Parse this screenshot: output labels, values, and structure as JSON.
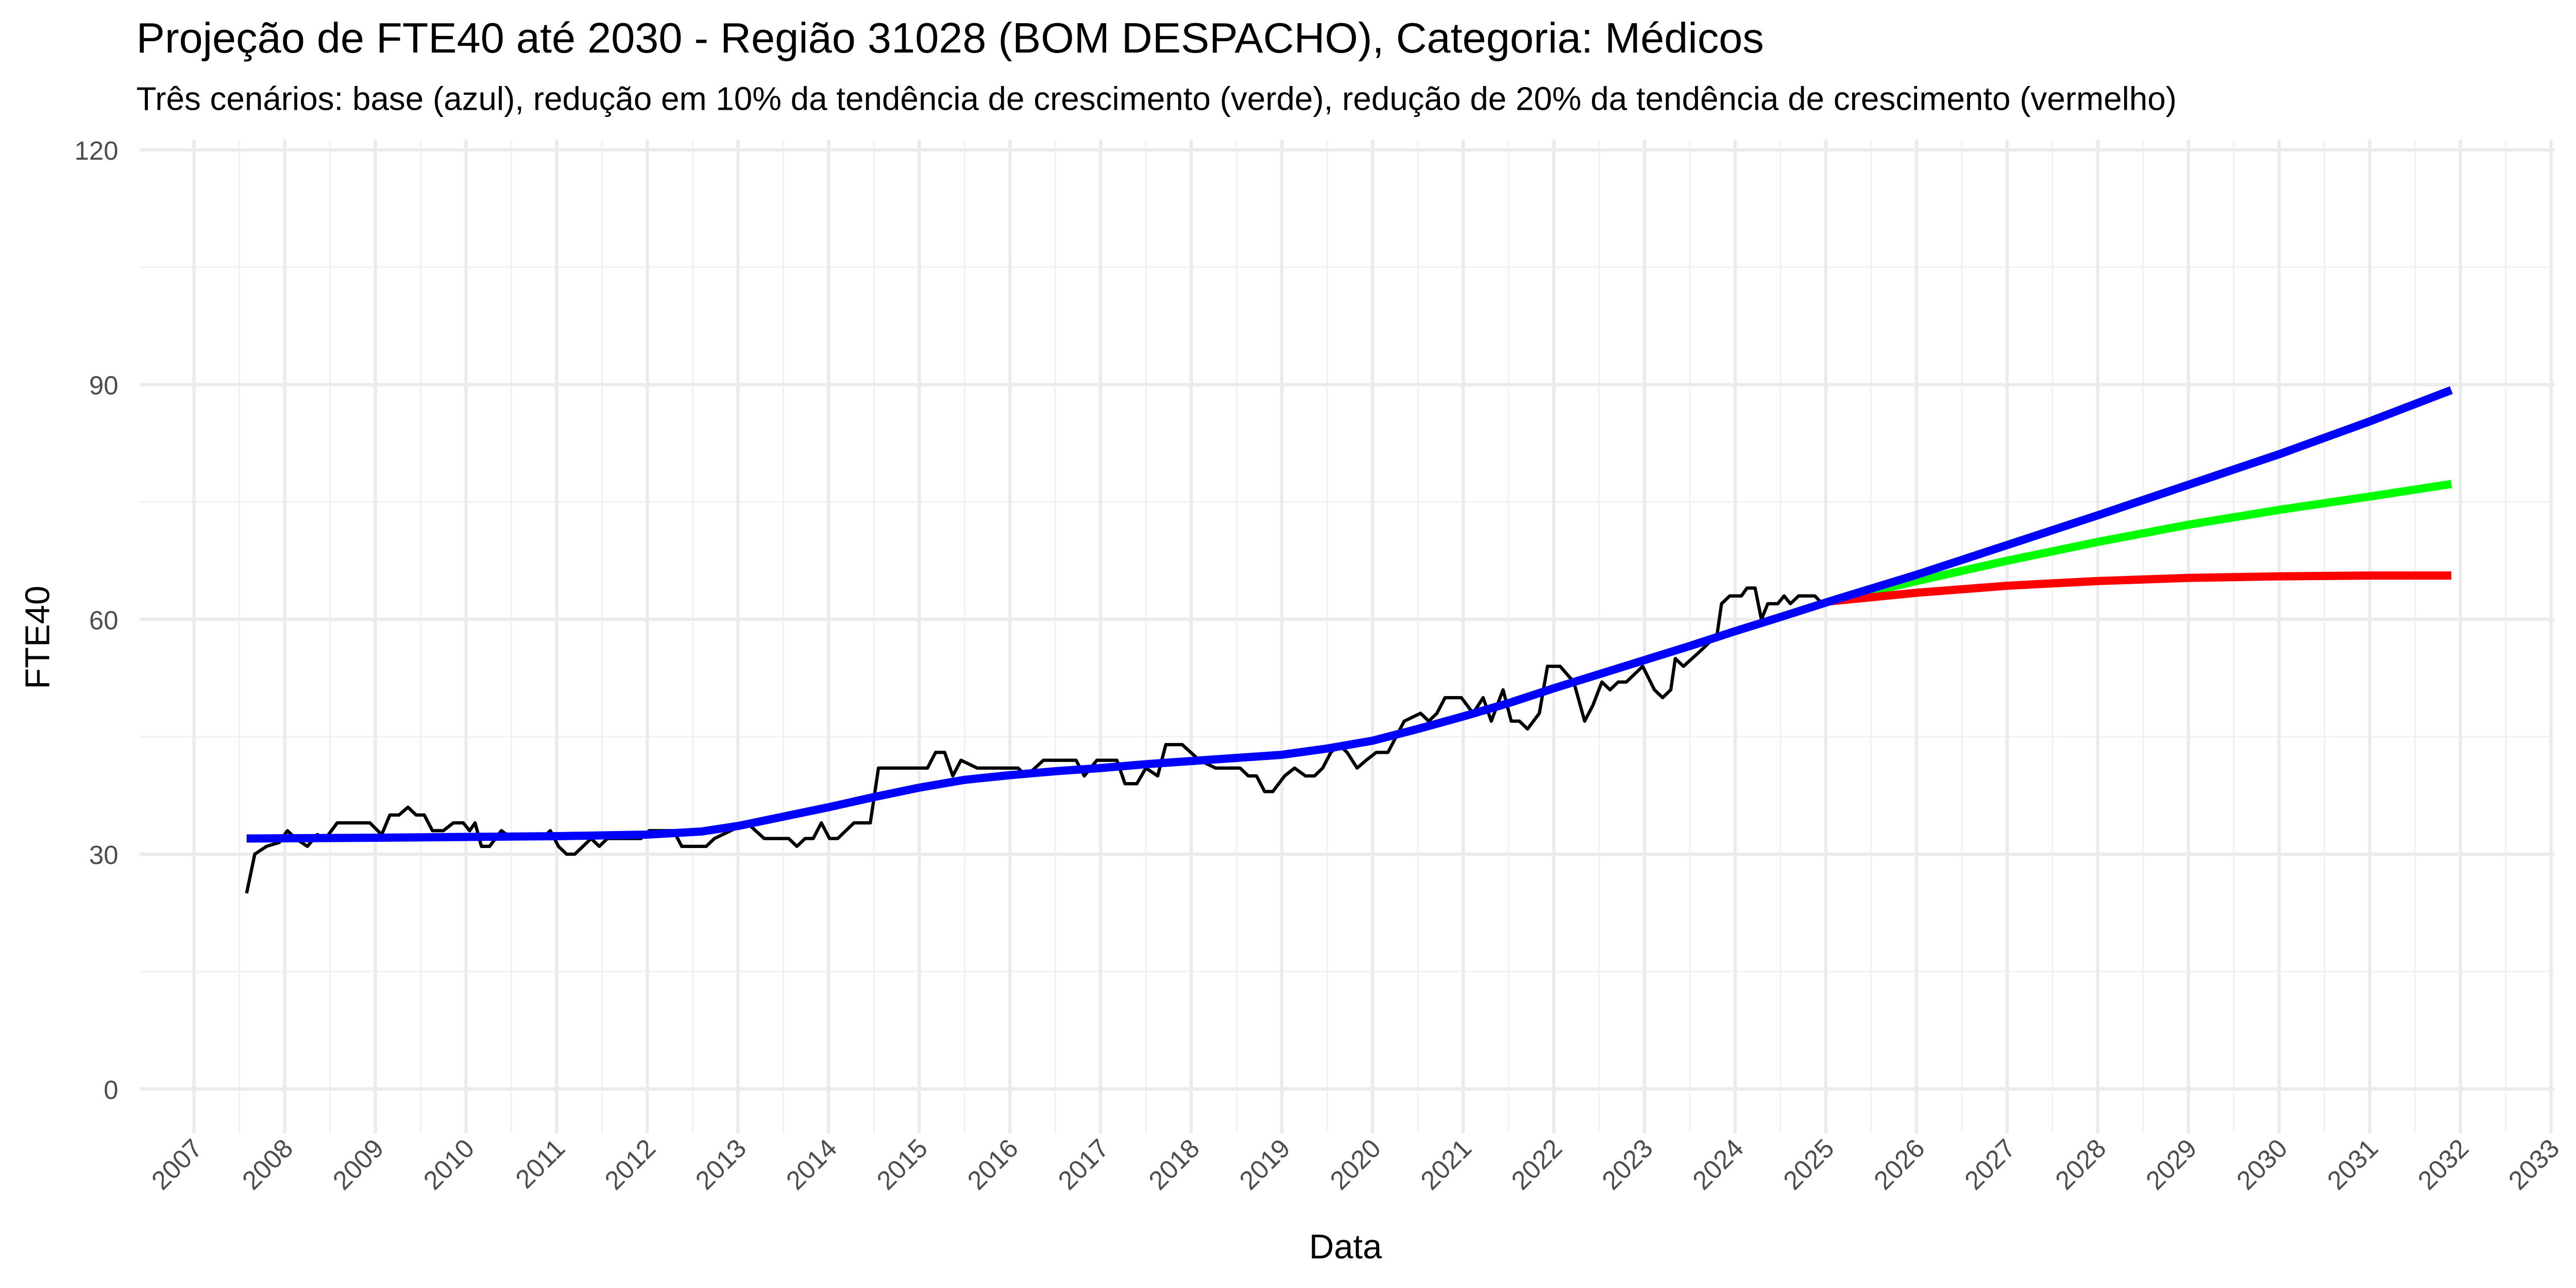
{
  "chart_data": {
    "type": "line",
    "title": "Projeção de FTE40 até 2030 - Região 31028 (BOM DESPACHO), Categoria: Médicos",
    "subtitle": "Três cenários: base (azul), redução em 10% da tendência de crescimento (verde), redução de 20% da tendência de crescimento (vermelho)",
    "x_label": "Data",
    "y_label": "FTE40",
    "xlim": [
      2006.4,
      2033.04
    ],
    "ylim": [
      -5.7,
      121.3
    ],
    "xticks": [
      2007,
      2008,
      2009,
      2010,
      2011,
      2012,
      2013,
      2014,
      2015,
      2016,
      2017,
      2018,
      2019,
      2020,
      2021,
      2022,
      2023,
      2024,
      2025,
      2026,
      2027,
      2028,
      2029,
      2030,
      2031,
      2032,
      2033
    ],
    "yticks": [
      0,
      30,
      60,
      90,
      120
    ],
    "grid": true,
    "minor_grid": true,
    "series": [
      {
        "color": "#000000",
        "width": 2,
        "x": [
          2007.58,
          2007.67,
          2007.8,
          2007.94,
          2008.03,
          2008.12,
          2008.25,
          2008.36,
          2008.45,
          2008.58,
          2008.94,
          2009.07,
          2009.16,
          2009.26,
          2009.36,
          2009.45,
          2009.54,
          2009.63,
          2009.75,
          2009.86,
          2009.97,
          2010.04,
          2010.1,
          2010.17,
          2010.26,
          2010.39,
          2010.51,
          2010.66,
          2010.84,
          2010.93,
          2011.02,
          2011.11,
          2011.2,
          2011.29,
          2011.38,
          2011.47,
          2011.56,
          2011.75,
          2011.93,
          2012.02,
          2012.29,
          2012.38,
          2012.65,
          2012.74,
          2012.92,
          2013.1,
          2013.29,
          2013.56,
          2013.65,
          2013.74,
          2013.83,
          2013.92,
          2014.01,
          2014.1,
          2014.19,
          2014.28,
          2014.46,
          2014.55,
          2015.09,
          2015.18,
          2015.28,
          2015.37,
          2015.46,
          2015.64,
          2016.09,
          2016.18,
          2016.37,
          2016.73,
          2016.82,
          2016.96,
          2017.18,
          2017.27,
          2017.4,
          2017.5,
          2017.63,
          2017.72,
          2017.9,
          2018.09,
          2018.27,
          2018.54,
          2018.63,
          2018.72,
          2018.81,
          2018.9,
          2019.03,
          2019.14,
          2019.26,
          2019.36,
          2019.45,
          2019.54,
          2019.63,
          2019.72,
          2019.83,
          2019.93,
          2020.04,
          2020.17,
          2020.26,
          2020.35,
          2020.53,
          2020.62,
          2020.71,
          2020.8,
          2020.98,
          2021.11,
          2021.22,
          2021.31,
          2021.44,
          2021.53,
          2021.62,
          2021.71,
          2021.84,
          2021.93,
          2022.07,
          2022.22,
          2022.34,
          2022.43,
          2022.53,
          2022.62,
          2022.71,
          2022.8,
          2022.89,
          2022.98,
          2023.11,
          2023.2,
          2023.29,
          2023.34,
          2023.43,
          2023.62,
          2023.8,
          2023.85,
          2023.94,
          2024.07,
          2024.13,
          2024.22,
          2024.29,
          2024.36,
          2024.47,
          2024.54,
          2024.61,
          2024.7,
          2024.88,
          2024.96
        ],
        "values": [
          25,
          30,
          31,
          31.5,
          33,
          32,
          31,
          32.5,
          32,
          34,
          34,
          32.5,
          35,
          35,
          36,
          35,
          35,
          33,
          33,
          34,
          34,
          33,
          34,
          31,
          31,
          33,
          32,
          32,
          32,
          33,
          31,
          30,
          30,
          31,
          32,
          31,
          32,
          32,
          32,
          33,
          33,
          31,
          31,
          32,
          33,
          34,
          32,
          32,
          31,
          32,
          32,
          34,
          32,
          32,
          33,
          34,
          34,
          41,
          41,
          43,
          43,
          40,
          42,
          41,
          41,
          40,
          42,
          42,
          40,
          42,
          42,
          39,
          39,
          41,
          40,
          44,
          44,
          42,
          41,
          41,
          40,
          40,
          38,
          38,
          40,
          41,
          40,
          40,
          41,
          43,
          44,
          43,
          41,
          42,
          43,
          43,
          45,
          47,
          48,
          47,
          48,
          50,
          50,
          48,
          50,
          47,
          51,
          47,
          47,
          46,
          48,
          54,
          54,
          52,
          47,
          49,
          52,
          51,
          52,
          52,
          53,
          54,
          51,
          50,
          51,
          55,
          54,
          56,
          58,
          62,
          63,
          63,
          64,
          64,
          60,
          62,
          62,
          63,
          62,
          63,
          63,
          62
        ]
      },
      {
        "color": "#00ff00",
        "width": 5,
        "x": [
          2025.04,
          2026,
          2027,
          2028,
          2029,
          2030,
          2031,
          2031.9
        ],
        "values": [
          62.3,
          64.9,
          67.5,
          69.9,
          72.1,
          74.0,
          75.7,
          77.3
        ]
      },
      {
        "color": "#ff0000",
        "width": 5,
        "x": [
          2025.04,
          2026,
          2027,
          2028,
          2029,
          2030,
          2031,
          2031.9
        ],
        "values": [
          62.3,
          63.4,
          64.3,
          64.9,
          65.3,
          65.5,
          65.6,
          65.6
        ]
      },
      {
        "color": "#0000ff",
        "width": 5,
        "x": [
          2007.58,
          2009,
          2010,
          2011,
          2012,
          2012.6,
          2013,
          2013.5,
          2014,
          2014.5,
          2015,
          2015.5,
          2016,
          2016.5,
          2017,
          2017.5,
          2018,
          2018.5,
          2019,
          2019.5,
          2020,
          2020.5,
          2021,
          2021.5,
          2022,
          2022.5,
          2023,
          2023.5,
          2024,
          2024.5,
          2025.04,
          2026,
          2027,
          2028,
          2029,
          2030,
          2031,
          2031.9
        ],
        "values": [
          32,
          32.1,
          32.2,
          32.3,
          32.5,
          32.9,
          33.6,
          34.8,
          36,
          37.3,
          38.5,
          39.5,
          40.1,
          40.6,
          41,
          41.5,
          41.9,
          42.3,
          42.7,
          43.5,
          44.5,
          46,
          47.6,
          49.3,
          51.2,
          53,
          54.8,
          56.6,
          58.5,
          60.3,
          62.3,
          65.7,
          69.5,
          73.3,
          77.2,
          81.1,
          85.3,
          89.3
        ]
      }
    ]
  }
}
